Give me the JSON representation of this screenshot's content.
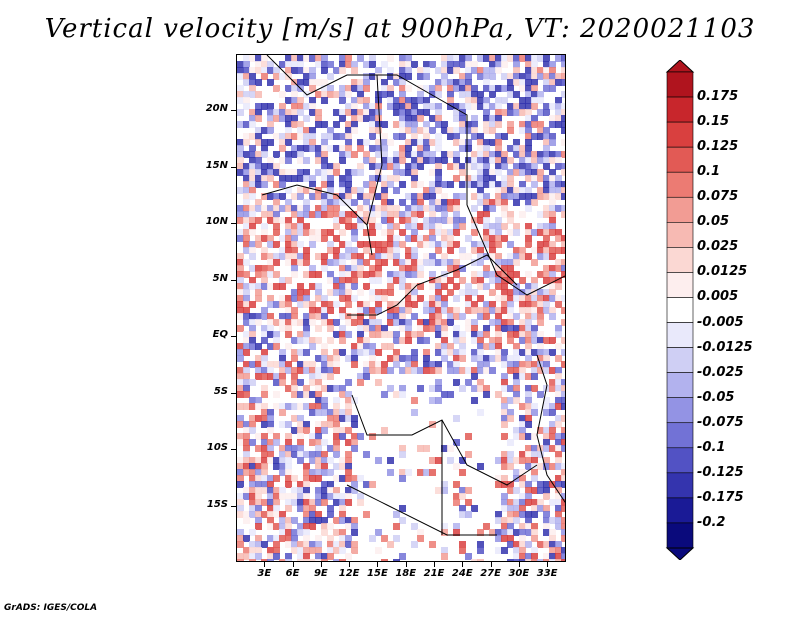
{
  "title": "Vertical velocity [m/s] at 900hPa, VT: 2020021103",
  "credit": "GrADS: IGES/COLA",
  "map": {
    "lat_labels": [
      "20N",
      "15N",
      "10N",
      "5N",
      "EQ",
      "5S",
      "10S",
      "15S"
    ],
    "lon_labels": [
      "3E",
      "6E",
      "9E",
      "12E",
      "15E",
      "18E",
      "21E",
      "24E",
      "27E",
      "30E",
      "33E"
    ],
    "lat_range": [
      -20,
      25
    ],
    "lon_range": [
      0,
      35
    ]
  },
  "colorbar": {
    "labels": [
      "0.175",
      "0.15",
      "0.125",
      "0.1",
      "0.075",
      "0.05",
      "0.025",
      "0.0125",
      "0.005",
      "-0.005",
      "-0.0125",
      "-0.025",
      "-0.05",
      "-0.075",
      "-0.1",
      "-0.125",
      "-0.175",
      "-0.2"
    ],
    "colors": [
      "#b0141e",
      "#c8262c",
      "#d9403f",
      "#e25a55",
      "#ec7b73",
      "#f29c94",
      "#f7bab3",
      "#fbd8d3",
      "#fdeeee",
      "#ffffff",
      "#e9e9fb",
      "#cfcff4",
      "#b2b2ee",
      "#9393e4",
      "#7272d6",
      "#5252c4",
      "#3434ae",
      "#1a1a96",
      "#0a0a7c"
    ]
  }
}
